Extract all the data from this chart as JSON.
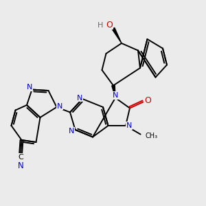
{
  "bg_color": "#ebebeb",
  "bond_color": "#000000",
  "N_color": "#0000cc",
  "O_color": "#cc0000",
  "H_color": "#666666",
  "bond_width": 1.4,
  "fig_size": [
    3.0,
    3.0
  ],
  "dpi": 100,
  "xlim": [
    0,
    10
  ],
  "ylim": [
    0,
    10
  ]
}
